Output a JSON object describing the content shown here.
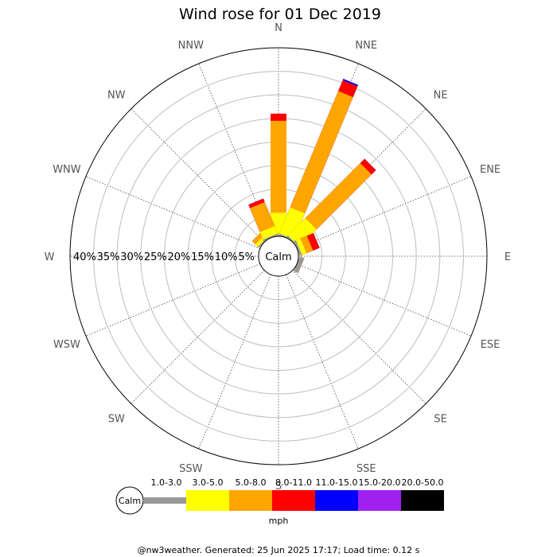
{
  "page": {
    "title": "Wind rose for 01 Dec 2019",
    "footer": "@nw3weather. Generated: 25 Jun 2025 17:17; Load time: 0.12 s"
  },
  "chart_data": {
    "type": "wind-rose",
    "title": "Wind rose for 01 Dec 2019",
    "units": "mph",
    "calm_label": "Calm",
    "directions": [
      "N",
      "NNE",
      "NE",
      "ENE",
      "E",
      "ESE",
      "SE",
      "SSE",
      "S",
      "SSW",
      "SW",
      "WSW",
      "W",
      "WNW",
      "NW",
      "NNW"
    ],
    "radial_ticks": [
      "5%",
      "10%",
      "15%",
      "20%",
      "25%",
      "30%",
      "35%",
      "40%"
    ],
    "radial_max": 40,
    "bins": [
      {
        "label": "1.0-3.0",
        "color": "#999999"
      },
      {
        "label": "3.0-5.0",
        "color": "#ffff00"
      },
      {
        "label": "5.0-8.0",
        "color": "#ffa500"
      },
      {
        "label": "8.0-11.0",
        "color": "#ff0000"
      },
      {
        "label": "11.0-15.0",
        "color": "#0000ff"
      },
      {
        "label": "15.0-20.0",
        "color": "#a020f0"
      },
      {
        "label": "20.0-50.0",
        "color": "#000000"
      }
    ],
    "cumulative_percent": [
      {
        "dir": "N",
        "values": [
          0.3,
          5.0,
          24.5,
          26.0,
          26.0,
          26.0,
          26.0
        ]
      },
      {
        "dir": "NNE",
        "values": [
          0.3,
          6.3,
          33.0,
          35.5,
          35.8,
          35.8,
          35.8
        ]
      },
      {
        "dir": "NE",
        "values": [
          0.3,
          5.5,
          22.0,
          23.3,
          23.3,
          23.3,
          23.3
        ]
      },
      {
        "dir": "ENE",
        "values": [
          0.5,
          1.5,
          3.0,
          4.5,
          4.5,
          4.5,
          4.5
        ]
      },
      {
        "dir": "E",
        "values": [
          0,
          0,
          0,
          0,
          0,
          0,
          0
        ]
      },
      {
        "dir": "ESE",
        "values": [
          1.0,
          1.0,
          1.0,
          1.0,
          1.0,
          1.0,
          1.0
        ]
      },
      {
        "dir": "SE",
        "values": [
          0,
          0,
          0,
          0,
          0,
          0,
          0
        ]
      },
      {
        "dir": "SSE",
        "values": [
          0,
          0,
          0,
          0,
          0,
          0,
          0
        ]
      },
      {
        "dir": "S",
        "values": [
          0,
          0,
          0,
          0,
          0,
          0,
          0
        ]
      },
      {
        "dir": "SSW",
        "values": [
          0,
          0,
          0,
          0,
          0,
          0,
          0
        ]
      },
      {
        "dir": "SW",
        "values": [
          0,
          0,
          0,
          0,
          0,
          0,
          0
        ]
      },
      {
        "dir": "WSW",
        "values": [
          0,
          0,
          0,
          0,
          0,
          0,
          0
        ]
      },
      {
        "dir": "W",
        "values": [
          0,
          0,
          0,
          0,
          0,
          0,
          0
        ]
      },
      {
        "dir": "WNW",
        "values": [
          0,
          0,
          0,
          0,
          0,
          0,
          0
        ]
      },
      {
        "dir": "NW",
        "values": [
          0.3,
          1.0,
          2.0,
          2.0,
          2.0,
          2.0,
          2.0
        ]
      },
      {
        "dir": "NNW",
        "values": [
          0.3,
          2.0,
          7.5,
          8.3,
          8.3,
          8.3,
          8.3
        ]
      }
    ],
    "calm_percent": 0
  }
}
